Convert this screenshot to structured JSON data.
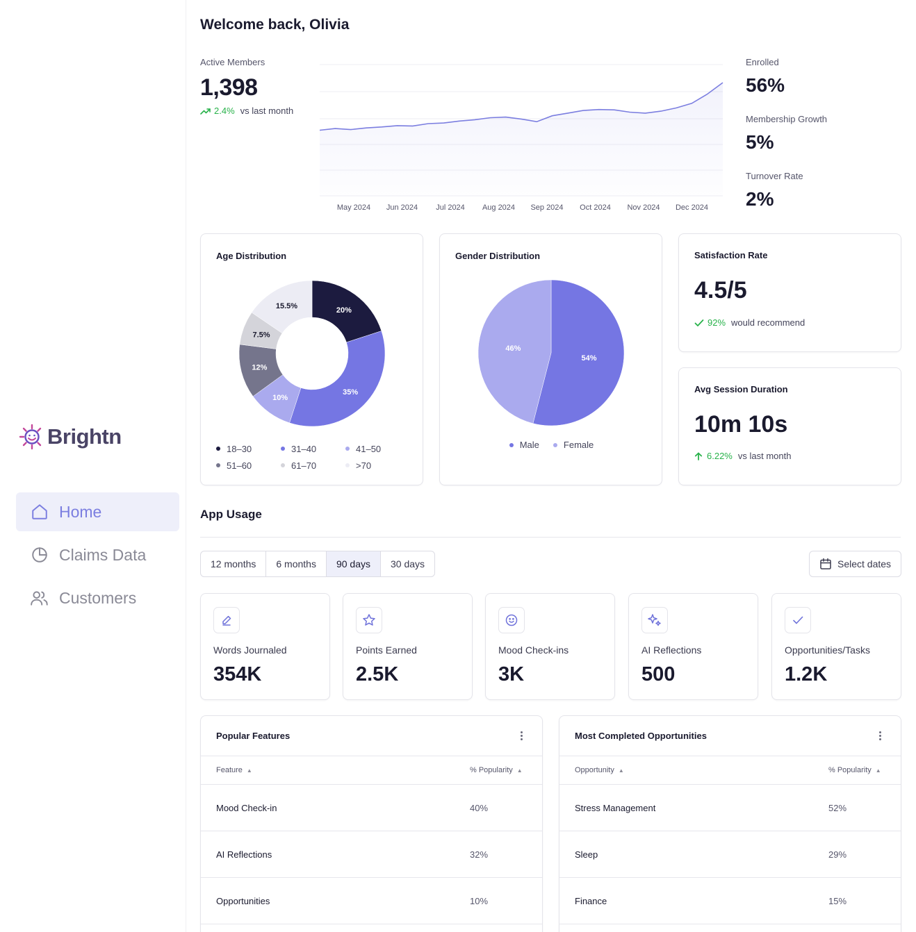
{
  "brand": {
    "name": "Brightn",
    "accent": "#7b7ee0"
  },
  "sidebar": {
    "items": [
      {
        "label": "Home",
        "icon": "home-icon",
        "active": true
      },
      {
        "label": "Claims Data",
        "icon": "pie-chart-icon",
        "active": false
      },
      {
        "label": "Customers",
        "icon": "users-icon",
        "active": false
      }
    ]
  },
  "header": {
    "welcome": "Welcome back, Olivia"
  },
  "active_members": {
    "label": "Active Members",
    "value": "1,398",
    "delta": "2.4%",
    "delta_text": "vs last month"
  },
  "right_kpis": [
    {
      "label": "Enrolled",
      "value": "56%"
    },
    {
      "label": "Membership Growth",
      "value": "5%"
    },
    {
      "label": "Turnover Rate",
      "value": "2%"
    }
  ],
  "chart_data": [
    {
      "type": "line",
      "x_labels": [
        "May 2024",
        "Jun 2024",
        "Jul 2024",
        "Aug 2024",
        "Sep 2024",
        "Oct 2024",
        "Nov 2024",
        "Dec 2024"
      ],
      "series": [
        {
          "values": [
            1200,
            1205,
            1202,
            1207,
            1210,
            1214,
            1213,
            1220,
            1222,
            1228,
            1232,
            1238,
            1240,
            1234,
            1226,
            1244,
            1252,
            1260,
            1263,
            1262,
            1255,
            1252,
            1258,
            1268,
            1282,
            1310,
            1345
          ]
        }
      ],
      "grid": true,
      "line_color": "#7b7ee0"
    },
    {
      "type": "pie",
      "title": "Age Distribution",
      "donut": true,
      "categories": [
        "18–30",
        "31–40",
        "41–50",
        "51–60",
        "61–70",
        ">70"
      ],
      "values": [
        20,
        35,
        10,
        12,
        7.5,
        15.5
      ],
      "slice_order": [
        "18–30",
        "31–40",
        "41–50",
        "51–60",
        "61–70",
        ">70"
      ],
      "colors": [
        "#1c1b3f",
        "#7576e3",
        "#aaaaee",
        "#75758c",
        "#d4d4da",
        "#ececf4"
      ],
      "label_colors": [
        "#ffffff",
        "#ffffff",
        "#ffffff",
        "#ffffff",
        "#1a1a2e",
        "#1a1a2e"
      ]
    },
    {
      "type": "pie",
      "title": "Gender Distribution",
      "categories": [
        "Male",
        "Female"
      ],
      "values": [
        54,
        46
      ],
      "colors": [
        "#7576e3",
        "#aaaaee"
      ]
    }
  ],
  "satisfaction": {
    "title": "Satisfaction Rate",
    "value": "4.5/5",
    "delta": "92%",
    "delta_text": "would recommend"
  },
  "session": {
    "title": "Avg Session Duration",
    "value": "10m 10s",
    "delta": "6.22%",
    "delta_text": "vs last month"
  },
  "app_usage": {
    "title": "App Usage",
    "ranges": [
      "12 months",
      "6 months",
      "90 days",
      "30 days"
    ],
    "selected_range": "90 days",
    "date_button": "Select dates",
    "stats": [
      {
        "label": "Words Journaled",
        "value": "354K",
        "icon": "pencil-icon"
      },
      {
        "label": "Points Earned",
        "value": "2.5K",
        "icon": "star-icon"
      },
      {
        "label": "Mood Check-ins",
        "value": "3K",
        "icon": "smiley-icon"
      },
      {
        "label": "AI Reflections",
        "value": "500",
        "icon": "sparkle-icon"
      },
      {
        "label": "Opportunities/Tasks",
        "value": "1.2K",
        "icon": "check-icon"
      }
    ]
  },
  "popular_features": {
    "title": "Popular Features",
    "columns": [
      "Feature",
      "% Popularity"
    ],
    "rows": [
      [
        "Mood Check-in",
        "40%"
      ],
      [
        "AI Reflections",
        "32%"
      ],
      [
        "Opportunities",
        "10%"
      ]
    ]
  },
  "completed_opportunities": {
    "title": "Most Completed Opportunities",
    "columns": [
      "Opportunity",
      "% Popularity"
    ],
    "rows": [
      [
        "Stress Management",
        "52%"
      ],
      [
        "Sleep",
        "29%"
      ],
      [
        "Finance",
        "15%"
      ]
    ]
  }
}
